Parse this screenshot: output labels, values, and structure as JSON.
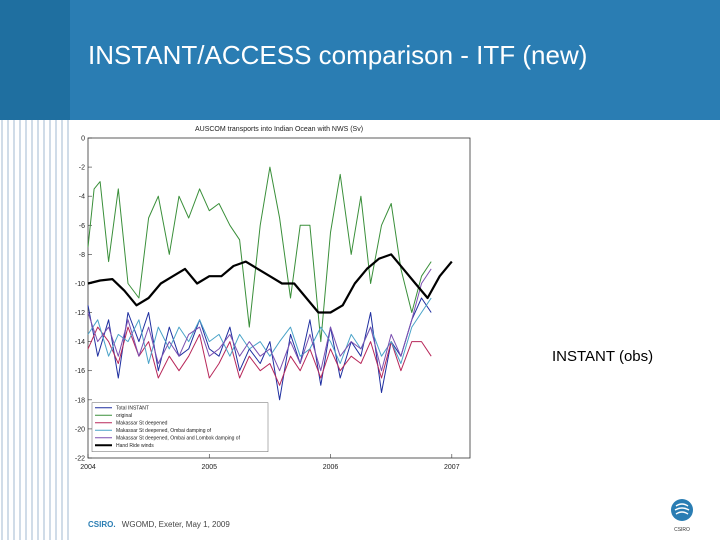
{
  "slide": {
    "title": "INSTANT/ACCESS comparison - ITF (new)",
    "annotation": "INSTANT (obs)",
    "footer_brand": "CSIRO.",
    "footer_text": "WGOMD, Exeter, May 1, 2009",
    "logo_text": "CSIRO",
    "header_color": "#2a7db3"
  },
  "chart_data": {
    "type": "line",
    "title": "AUSCOM transports into Indian Ocean with NWS (Sv)",
    "xlabel": "",
    "ylabel": "",
    "xlim": [
      2004,
      2007.15
    ],
    "ylim": [
      -22,
      0
    ],
    "xticks": [
      "2004",
      "2005",
      "2006",
      "2007"
    ],
    "yticks": [
      "0",
      "-2",
      "-4",
      "-6",
      "-8",
      "-10",
      "-12",
      "-14",
      "-16",
      "-18",
      "-20",
      "-22"
    ],
    "legend_position": "bottom-left",
    "series": [
      {
        "name": "Total INSTANT",
        "color": "#1f2fa0",
        "x": [
          2004.0,
          2004.08,
          2004.17,
          2004.25,
          2004.33,
          2004.42,
          2004.5,
          2004.58,
          2004.67,
          2004.75,
          2004.83,
          2004.92,
          2005.0,
          2005.08,
          2005.17,
          2005.25,
          2005.33,
          2005.42,
          2005.5,
          2005.58,
          2005.67,
          2005.75,
          2005.83,
          2005.92,
          2006.0,
          2006.08,
          2006.17,
          2006.25,
          2006.33,
          2006.42,
          2006.5,
          2006.58,
          2006.67,
          2006.75,
          2006.83
        ],
        "y": [
          -11.5,
          -15,
          -12.5,
          -16.5,
          -12,
          -14,
          -12,
          -16,
          -13,
          -15,
          -14.5,
          -12.5,
          -14.5,
          -15,
          -13,
          -16,
          -14.5,
          -15.5,
          -14,
          -18,
          -13.5,
          -15.5,
          -12.5,
          -17,
          -13,
          -16.5,
          -14,
          -15,
          -12,
          -17.5,
          -14,
          -15,
          -12.5,
          -11,
          -12
        ]
      },
      {
        "name": "original",
        "color": "#3a8f3a",
        "x": [
          2004.0,
          2004.05,
          2004.1,
          2004.17,
          2004.25,
          2004.33,
          2004.42,
          2004.5,
          2004.58,
          2004.67,
          2004.75,
          2004.83,
          2004.92,
          2005.0,
          2005.08,
          2005.17,
          2005.25,
          2005.33,
          2005.42,
          2005.5,
          2005.58,
          2005.67,
          2005.75,
          2005.83,
          2005.92,
          2006.0,
          2006.08,
          2006.17,
          2006.25,
          2006.33,
          2006.42,
          2006.5,
          2006.58,
          2006.67,
          2006.75,
          2006.83
        ],
        "y": [
          -7.5,
          -3.5,
          -3,
          -8.5,
          -3.5,
          -10,
          -11,
          -5.5,
          -4,
          -8,
          -4,
          -5.5,
          -3.5,
          -5,
          -4.5,
          -6,
          -7,
          -13,
          -6,
          -2,
          -5.5,
          -11,
          -6,
          -6,
          -14,
          -6.5,
          -2.5,
          -8,
          -4,
          -10,
          -6,
          -4.5,
          -9,
          -12,
          -9.5,
          -8.5
        ]
      },
      {
        "name": "Makassar St deepened",
        "color": "#b8285a",
        "x": [
          2004.0,
          2004.08,
          2004.17,
          2004.25,
          2004.33,
          2004.42,
          2004.5,
          2004.58,
          2004.67,
          2004.75,
          2004.83,
          2004.92,
          2005.0,
          2005.08,
          2005.17,
          2005.25,
          2005.33,
          2005.42,
          2005.5,
          2005.58,
          2005.67,
          2005.75,
          2005.83,
          2005.92,
          2006.0,
          2006.08,
          2006.17,
          2006.25,
          2006.33,
          2006.42,
          2006.5,
          2006.58,
          2006.67,
          2006.75,
          2006.83
        ],
        "y": [
          -14.5,
          -13,
          -14,
          -15.5,
          -13,
          -15,
          -14,
          -16.5,
          -15,
          -16,
          -15,
          -13.5,
          -16.5,
          -15.5,
          -14,
          -16.5,
          -15,
          -16,
          -15.5,
          -17,
          -15,
          -16,
          -14.5,
          -16.5,
          -14.5,
          -16,
          -15,
          -15.5,
          -14,
          -16.5,
          -14,
          -16,
          -14,
          -14,
          -15
        ]
      },
      {
        "name": "Makassar St deepened, Ombai damping of",
        "color": "#4aa3c8",
        "x": [
          2004.0,
          2004.08,
          2004.17,
          2004.25,
          2004.33,
          2004.42,
          2004.5,
          2004.58,
          2004.67,
          2004.75,
          2004.83,
          2004.92,
          2005.0,
          2005.08,
          2005.17,
          2005.25,
          2005.33,
          2005.42,
          2005.5,
          2005.58,
          2005.67,
          2005.75,
          2005.83,
          2005.92,
          2006.0,
          2006.08,
          2006.17,
          2006.25,
          2006.33,
          2006.42,
          2006.5,
          2006.58,
          2006.67,
          2006.75,
          2006.83
        ],
        "y": [
          -13.5,
          -12.5,
          -15,
          -13.5,
          -14,
          -12.5,
          -15.5,
          -13,
          -14.5,
          -13,
          -14,
          -12.5,
          -14,
          -13.5,
          -15,
          -13.5,
          -14.5,
          -14,
          -15,
          -14,
          -13,
          -15,
          -14.5,
          -13,
          -14,
          -15.5,
          -13.5,
          -14.5,
          -13,
          -15,
          -14,
          -15.5,
          -13,
          -12,
          -11
        ]
      },
      {
        "name": "Makassar St deepened, Ombai and Lombok damping of",
        "color": "#7b4fb0",
        "x": [
          2004.0,
          2004.08,
          2004.17,
          2004.25,
          2004.33,
          2004.42,
          2004.5,
          2004.58,
          2004.67,
          2004.75,
          2004.83,
          2004.92,
          2005.0,
          2005.08,
          2005.17,
          2005.25,
          2005.33,
          2005.42,
          2005.5,
          2005.58,
          2005.67,
          2005.75,
          2005.83,
          2005.92,
          2006.0,
          2006.08,
          2006.17,
          2006.25,
          2006.33,
          2006.42,
          2006.5,
          2006.58,
          2006.67,
          2006.75,
          2006.83
        ],
        "y": [
          -12,
          -14,
          -13,
          -15,
          -12.5,
          -15,
          -13,
          -15.5,
          -14,
          -15,
          -13.5,
          -13,
          -15,
          -14.5,
          -13.5,
          -15,
          -14,
          -15,
          -14.5,
          -16,
          -14,
          -15.5,
          -13.5,
          -16,
          -13,
          -15,
          -14,
          -14.5,
          -13,
          -16,
          -13.5,
          -15,
          -12.5,
          -10,
          -9
        ]
      },
      {
        "name": "Hand Ride winds",
        "color": "#000000",
        "x": [
          2004.0,
          2004.1,
          2004.2,
          2004.3,
          2004.4,
          2004.5,
          2004.6,
          2004.7,
          2004.8,
          2004.9,
          2005.0,
          2005.1,
          2005.2,
          2005.3,
          2005.4,
          2005.5,
          2005.6,
          2005.7,
          2005.8,
          2005.9,
          2006.0,
          2006.1,
          2006.2,
          2006.3,
          2006.4,
          2006.5,
          2006.6,
          2006.7,
          2006.8,
          2006.9,
          2007.0
        ],
        "y": [
          -10,
          -9.8,
          -9.7,
          -10.5,
          -11.5,
          -11,
          -10,
          -9.5,
          -9,
          -10,
          -9.5,
          -9.5,
          -8.8,
          -8.5,
          -9,
          -9.5,
          -10,
          -10,
          -11,
          -12,
          -12,
          -11.5,
          -10,
          -9,
          -8.3,
          -8,
          -9,
          -10,
          -11,
          -9.5,
          -8.5
        ]
      }
    ]
  }
}
